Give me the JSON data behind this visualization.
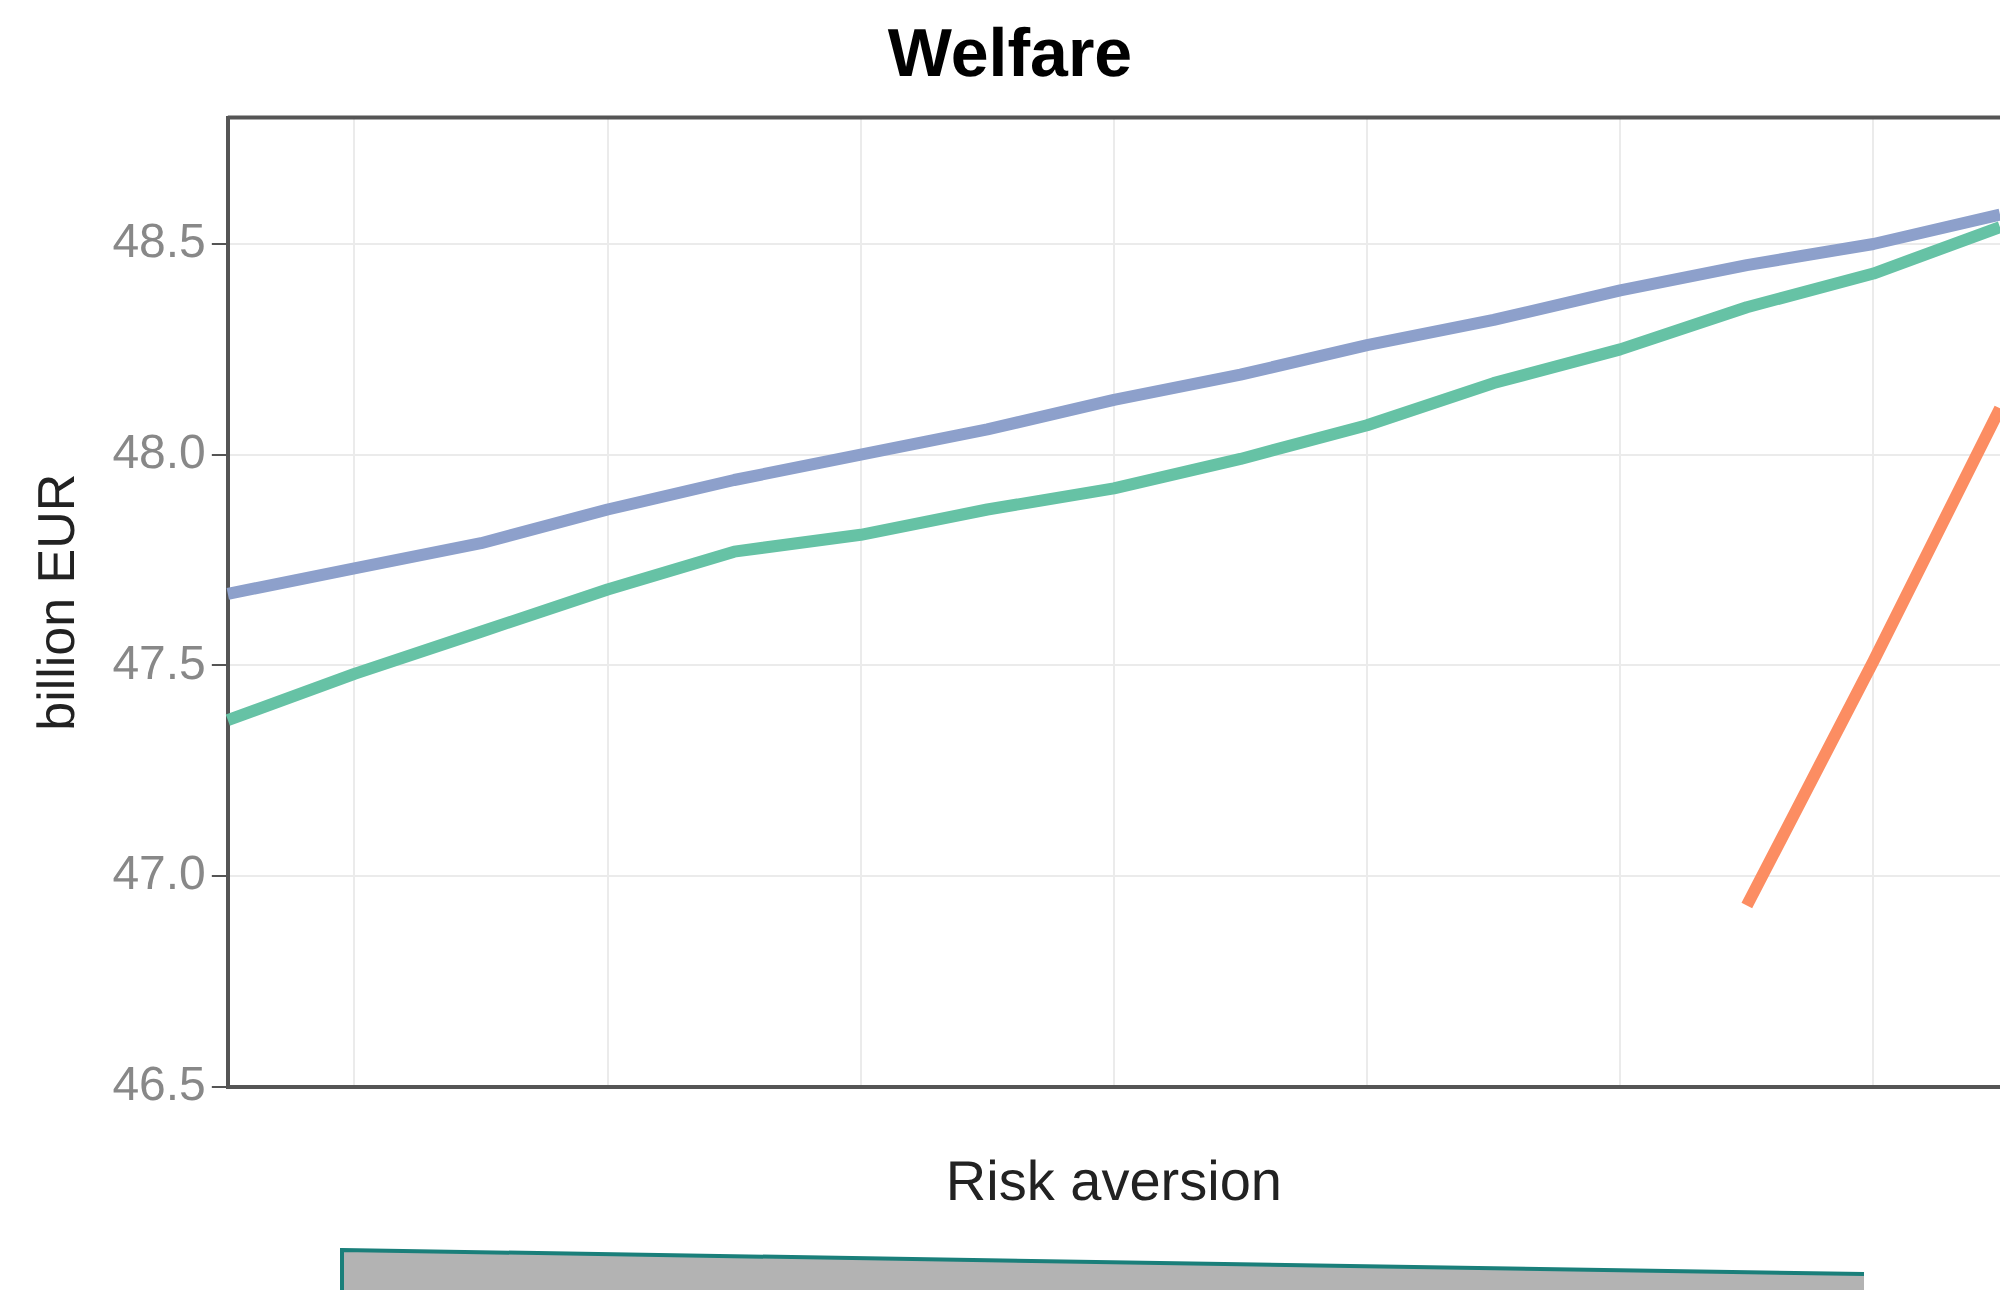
{
  "chart_data": {
    "type": "line",
    "title": "Welfare",
    "xlabel": "Risk aversion",
    "ylabel": "billion EUR",
    "categories": [
      null,
      null,
      null,
      null,
      null,
      null,
      null,
      null,
      null,
      null,
      null,
      null,
      null,
      null,
      null
    ],
    "series": [
      {
        "color": "#8da0cb",
        "values": [
          47.67,
          47.73,
          47.79,
          47.87,
          47.94,
          48.0,
          48.06,
          48.13,
          48.19,
          48.26,
          48.32,
          48.39,
          48.45,
          48.5,
          48.57
        ]
      },
      {
        "color": "#66c2a5",
        "values": [
          47.37,
          47.48,
          47.58,
          47.68,
          47.77,
          47.81,
          47.87,
          47.92,
          47.99,
          48.07,
          48.17,
          48.25,
          48.35,
          48.43,
          48.54
        ]
      },
      {
        "color": "#fc8d62",
        "values": [
          null,
          null,
          null,
          null,
          null,
          null,
          null,
          null,
          null,
          null,
          null,
          null,
          46.93,
          47.51,
          48.11
        ]
      }
    ],
    "ylim": [
      46.5,
      48.8
    ],
    "yticks": [
      {
        "value": 46.5,
        "label": "46.5"
      },
      {
        "value": 47,
        "label": "47.0"
      },
      {
        "value": 47.5,
        "label": "47.5"
      },
      {
        "value": 48,
        "label": "48.0"
      },
      {
        "value": 48.5,
        "label": "48.5"
      }
    ],
    "grid": true,
    "legend": false,
    "marker": "none",
    "line_style": "solid",
    "tick_labels": "y"
  }
}
